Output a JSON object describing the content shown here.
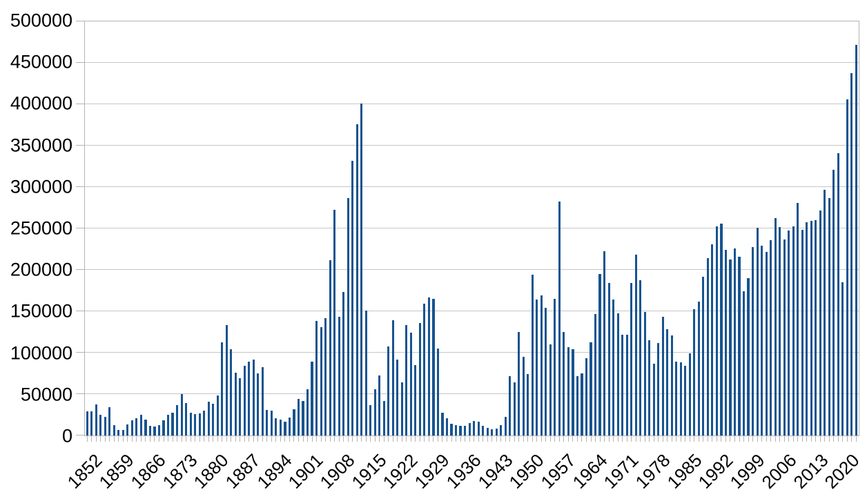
{
  "chart_data": {
    "type": "bar",
    "title": "",
    "xlabel": "",
    "ylabel": "",
    "ylim": [
      0,
      500000
    ],
    "grid": true,
    "legend": null,
    "bar_color": "#17538f",
    "grid_color": "#c6c6c6",
    "axis_color": "#b3b3b3",
    "text_color": "#000000",
    "background_color": "#ffffff",
    "y_ticks": [
      0,
      50000,
      100000,
      150000,
      200000,
      250000,
      300000,
      350000,
      400000,
      450000,
      500000
    ],
    "x_tick_labels": [
      "1852",
      "1859",
      "1866",
      "1873",
      "1880",
      "1887",
      "1894",
      "1901",
      "1908",
      "1915",
      "1922",
      "1929",
      "1936",
      "1943",
      "1950",
      "1957",
      "1964",
      "1971",
      "1978",
      "1985",
      "1992",
      "1999",
      "2006",
      "2013",
      "2020"
    ],
    "x_label_interval": 7,
    "years": [
      1852,
      1853,
      1854,
      1855,
      1856,
      1857,
      1858,
      1859,
      1860,
      1861,
      1862,
      1863,
      1864,
      1865,
      1866,
      1867,
      1868,
      1869,
      1870,
      1871,
      1872,
      1873,
      1874,
      1875,
      1876,
      1877,
      1878,
      1879,
      1880,
      1881,
      1882,
      1883,
      1884,
      1885,
      1886,
      1887,
      1888,
      1889,
      1890,
      1891,
      1892,
      1893,
      1894,
      1895,
      1896,
      1897,
      1898,
      1899,
      1900,
      1901,
      1902,
      1903,
      1904,
      1905,
      1906,
      1907,
      1908,
      1909,
      1910,
      1911,
      1912,
      1913,
      1914,
      1915,
      1916,
      1917,
      1918,
      1919,
      1920,
      1921,
      1922,
      1923,
      1924,
      1925,
      1926,
      1927,
      1928,
      1929,
      1930,
      1931,
      1932,
      1933,
      1934,
      1935,
      1936,
      1937,
      1938,
      1939,
      1940,
      1941,
      1942,
      1943,
      1944,
      1945,
      1946,
      1947,
      1948,
      1949,
      1950,
      1951,
      1952,
      1953,
      1954,
      1955,
      1956,
      1957,
      1958,
      1959,
      1960,
      1961,
      1962,
      1963,
      1964,
      1965,
      1966,
      1967,
      1968,
      1969,
      1970,
      1971,
      1972,
      1973,
      1974,
      1975,
      1976,
      1977,
      1978,
      1979,
      1980,
      1981,
      1982,
      1983,
      1984,
      1985,
      1986,
      1987,
      1988,
      1989,
      1990,
      1991,
      1992,
      1993,
      1994,
      1995,
      1996,
      1997,
      1998,
      1999,
      2000,
      2001,
      2002,
      2003,
      2004,
      2005,
      2006,
      2007,
      2008,
      2009,
      2010,
      2011,
      2012,
      2013,
      2014,
      2015,
      2016,
      2017,
      2018,
      2019,
      2020,
      2021,
      2022,
      2023
    ],
    "values": [
      29307,
      29464,
      37263,
      25296,
      22544,
      33854,
      12339,
      6300,
      6276,
      13589,
      18294,
      21000,
      24779,
      18958,
      11427,
      10666,
      12765,
      18630,
      24706,
      27773,
      36578,
      50050,
      39373,
      27382,
      25633,
      27082,
      29807,
      40492,
      38505,
      47991,
      112458,
      133624,
      103824,
      76169,
      69152,
      84526,
      88766,
      91600,
      75067,
      82165,
      30996,
      29633,
      20829,
      18790,
      16835,
      21716,
      31900,
      44543,
      41681,
      55747,
      89102,
      138660,
      131252,
      141465,
      211653,
      272409,
      143326,
      173694,
      286839,
      331288,
      375756,
      400870,
      150484,
      36665,
      55914,
      72910,
      41845,
      107698,
      138824,
      91728,
      64224,
      133729,
      124164,
      84907,
      135982,
      158886,
      166783,
      164993,
      104806,
      27530,
      20591,
      14382,
      12476,
      11277,
      11643,
      15101,
      17244,
      16994,
      11324,
      9329,
      7576,
      8504,
      12801,
      22722,
      71719,
      64127,
      125414,
      95217,
      73912,
      194391,
      164498,
      168868,
      154227,
      109946,
      164857,
      282164,
      124851,
      106928,
      104111,
      71698,
      74856,
      93151,
      112606,
      146758,
      194743,
      222876,
      183974,
      164531,
      147713,
      121900,
      122006,
      184200,
      218465,
      187881,
      149429,
      114914,
      86313,
      112096,
      143117,
      128618,
      121147,
      89157,
      88239,
      84302,
      99219,
      152098,
      161929,
      192001,
      214230,
      230781,
      252842,
      255819,
      223875,
      212859,
      226039,
      216014,
      174159,
      189922,
      227346,
      250484,
      229091,
      221352,
      235824,
      262241,
      251649,
      236754,
      247247,
      252172,
      280691,
      248748,
      257887,
      258953,
      260404,
      271845,
      296346,
      286479,
      321035,
      341180,
      184606,
      405999,
      437539,
      471771
    ]
  }
}
